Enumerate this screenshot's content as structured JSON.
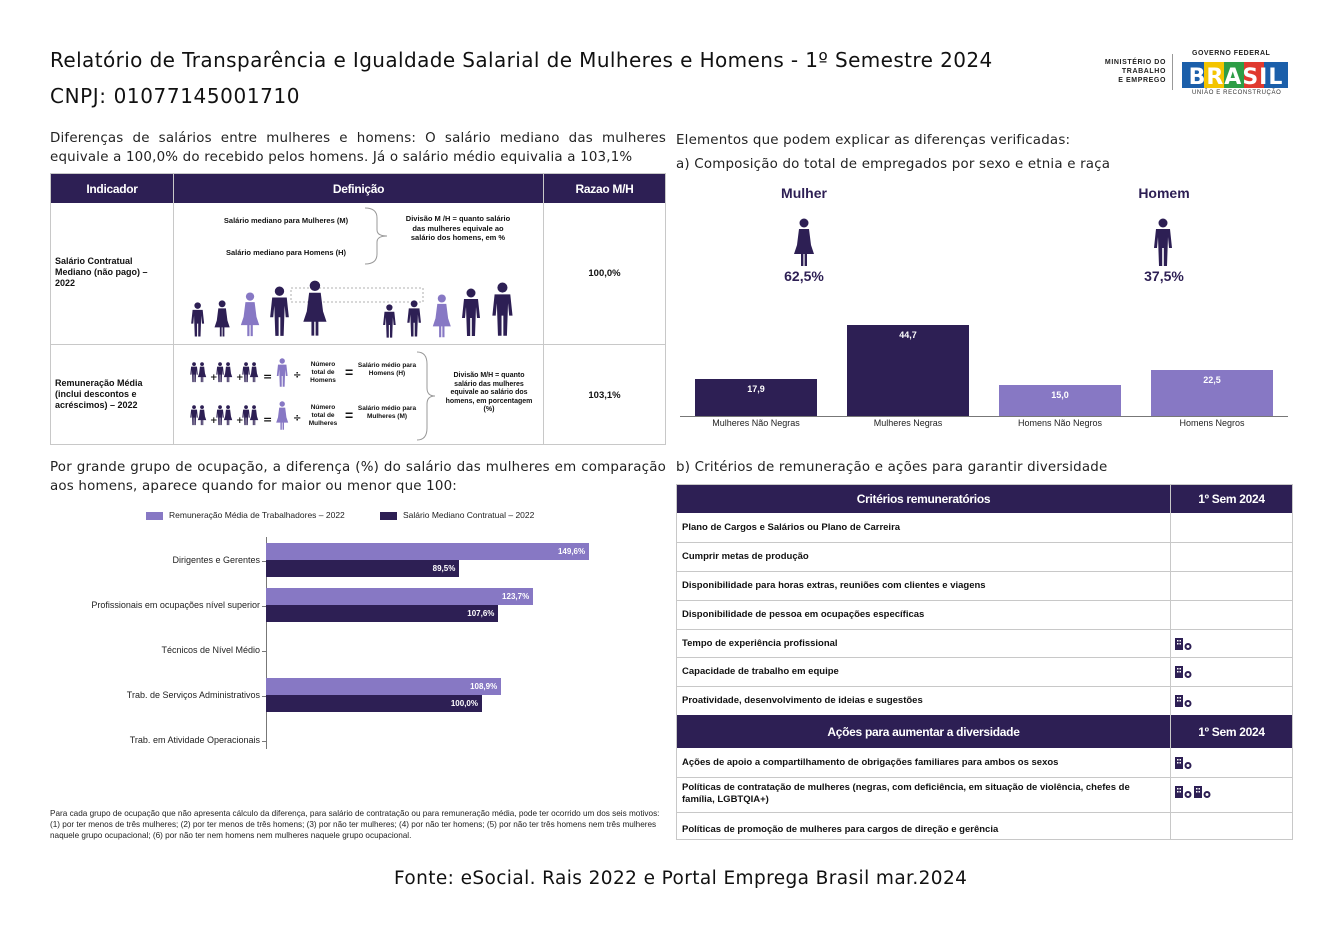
{
  "header": {
    "title": "Relatório de Transparência e Igualdade Salarial de Mulheres e Homens - 1º Semestre 2024",
    "cnpj": "CNPJ: 01077145001710",
    "logo_ministry": [
      "MINISTÉRIO DO",
      "TRABALHO",
      "E EMPREGO"
    ],
    "logo_gov_top": "GOVERNO FEDERAL",
    "logo_gov_word": "BRASIL",
    "logo_gov_bottom": "UNIÃO E RECONSTRUÇÃO"
  },
  "salary_diff": {
    "intro": "Diferenças de salários entre mulheres e homens: O salário mediano das mulheres equivale a 100,0% do recebido pelos homens. Já o salário médio equivalia a 103,1%",
    "headers": [
      "Indicador",
      "Definição",
      "Razao M/H"
    ],
    "rows": [
      {
        "indicator": "Salário Contratual Mediano (não pago) – 2022",
        "def_w": "Salário mediano para Mulheres (M)",
        "def_m": "Salário mediano para Homens (H)",
        "def_div": "Divisão M /H = quanto salário das mulheres equivale ao salário dos homens, em %",
        "ratio": "100,0%"
      },
      {
        "indicator": "Remuneração Média (inclui descontos e acréscimos) – 2022",
        "num_m": "Número total de Homens",
        "avg_m": "Salário médio para Homens (H)",
        "num_w": "Número total de Mulheres",
        "avg_w": "Salário médio para Mulheres (M)",
        "def_div": "Divisão M/H = quanto salário das mulheres equivale ao salário dos homens, em porcentagem (%)",
        "ratio": "103,1%"
      }
    ]
  },
  "composition": {
    "intro": "Elementos que podem explicar as diferenças verificadas:",
    "subtitle": "a) Composição do total de empregados por sexo e etnia e raça",
    "women_label": "Mulher",
    "women_pct": "62,5%",
    "men_label": "Homem",
    "men_pct": "37,5%"
  },
  "chart_data": [
    {
      "type": "bar",
      "categories": [
        "Mulheres Não Negras",
        "Mulheres Negras",
        "Homens Não Negros",
        "Homens Negros"
      ],
      "values": [
        17.9,
        44.7,
        15.0,
        22.5
      ],
      "labels": [
        "17,9",
        "44,7",
        "15,0",
        "22,5"
      ],
      "colors": [
        "#2d1f54",
        "#2d1f54",
        "#8778c4",
        "#8778c4"
      ]
    },
    {
      "type": "bar",
      "orientation": "horizontal",
      "categories": [
        "Dirigentes e Gerentes",
        "Profissionais em ocupações nível superior",
        "Técnicos de Nível Médio",
        "Trab. de Serviços Administrativos",
        "Trab. em Atividade Operacionais"
      ],
      "series": [
        {
          "name": "Remuneração Média de Trabalhadores – 2022",
          "color": "#8778c4",
          "values": [
            149.6,
            123.7,
            null,
            108.9,
            null
          ],
          "labels": [
            "149,6%",
            "123,7%",
            "",
            "108,9%",
            ""
          ]
        },
        {
          "name": "Salário Mediano Contratual – 2022",
          "color": "#2d1f54",
          "values": [
            89.5,
            107.6,
            null,
            100.0,
            null
          ],
          "labels": [
            "89,5%",
            "107,6%",
            "",
            "100,0%",
            ""
          ]
        }
      ]
    }
  ],
  "occupation": {
    "intro": "Por grande grupo de ocupação, a diferença (%) do salário das mulheres em comparação aos homens, aparece quando for maior ou menor que 100:",
    "footnote": "Para cada grupo de ocupação que não apresenta cálculo da diferença, para salário de contratação ou para remuneração média, pode ter ocorrido um dos seis motivos:(1) por ter menos de três mulheres; (2) por ter menos de três homens; (3) por não ter mulheres; (4) por não ter homens; (5) por não ter três homens nem três mulheres naquele grupo ocupacional; (6) por não ter nem homens nem mulheres naquele grupo ocupacional."
  },
  "criteria": {
    "subtitle": "b) Critérios de remuneração e ações para garantir diversidade",
    "header1": "Critérios remuneratórios",
    "header_sem": "1º Sem 2024",
    "rows": [
      {
        "label": "Plano de Cargos e Salários ou Plano de Carreira",
        "icons": 0
      },
      {
        "label": "Cumprir metas de produção",
        "icons": 0
      },
      {
        "label": "Disponibilidade para horas extras, reuniões com clientes e viagens",
        "icons": 0
      },
      {
        "label": "Disponibilidade de pessoa em ocupações específicas",
        "icons": 0
      },
      {
        "label": "Tempo de experiência profissional",
        "icons": 1
      },
      {
        "label": "Capacidade de trabalho em equipe",
        "icons": 1
      },
      {
        "label": "Proatividade, desenvolvimento de ideias e sugestões",
        "icons": 1
      }
    ],
    "header2": "Ações para aumentar a diversidade",
    "header_sem2": "1º Sem 2024",
    "rows2": [
      {
        "label": "Ações de apoio a compartilhamento de obrigações familiares para ambos os sexos",
        "icons": 1
      },
      {
        "label": "Políticas de contratação de mulheres (negras, com deficiência, em situação de violência, chefes de família, LGBTQIA+)",
        "icons": 2
      },
      {
        "label": "Políticas de promoção de mulheres para cargos de direção e gerência",
        "icons": 0
      }
    ]
  },
  "source": "Fonte: eSocial. Rais 2022 e Portal Emprega Brasil mar.2024",
  "colors": {
    "dark": "#2d1f54",
    "light": "#8778c4"
  }
}
